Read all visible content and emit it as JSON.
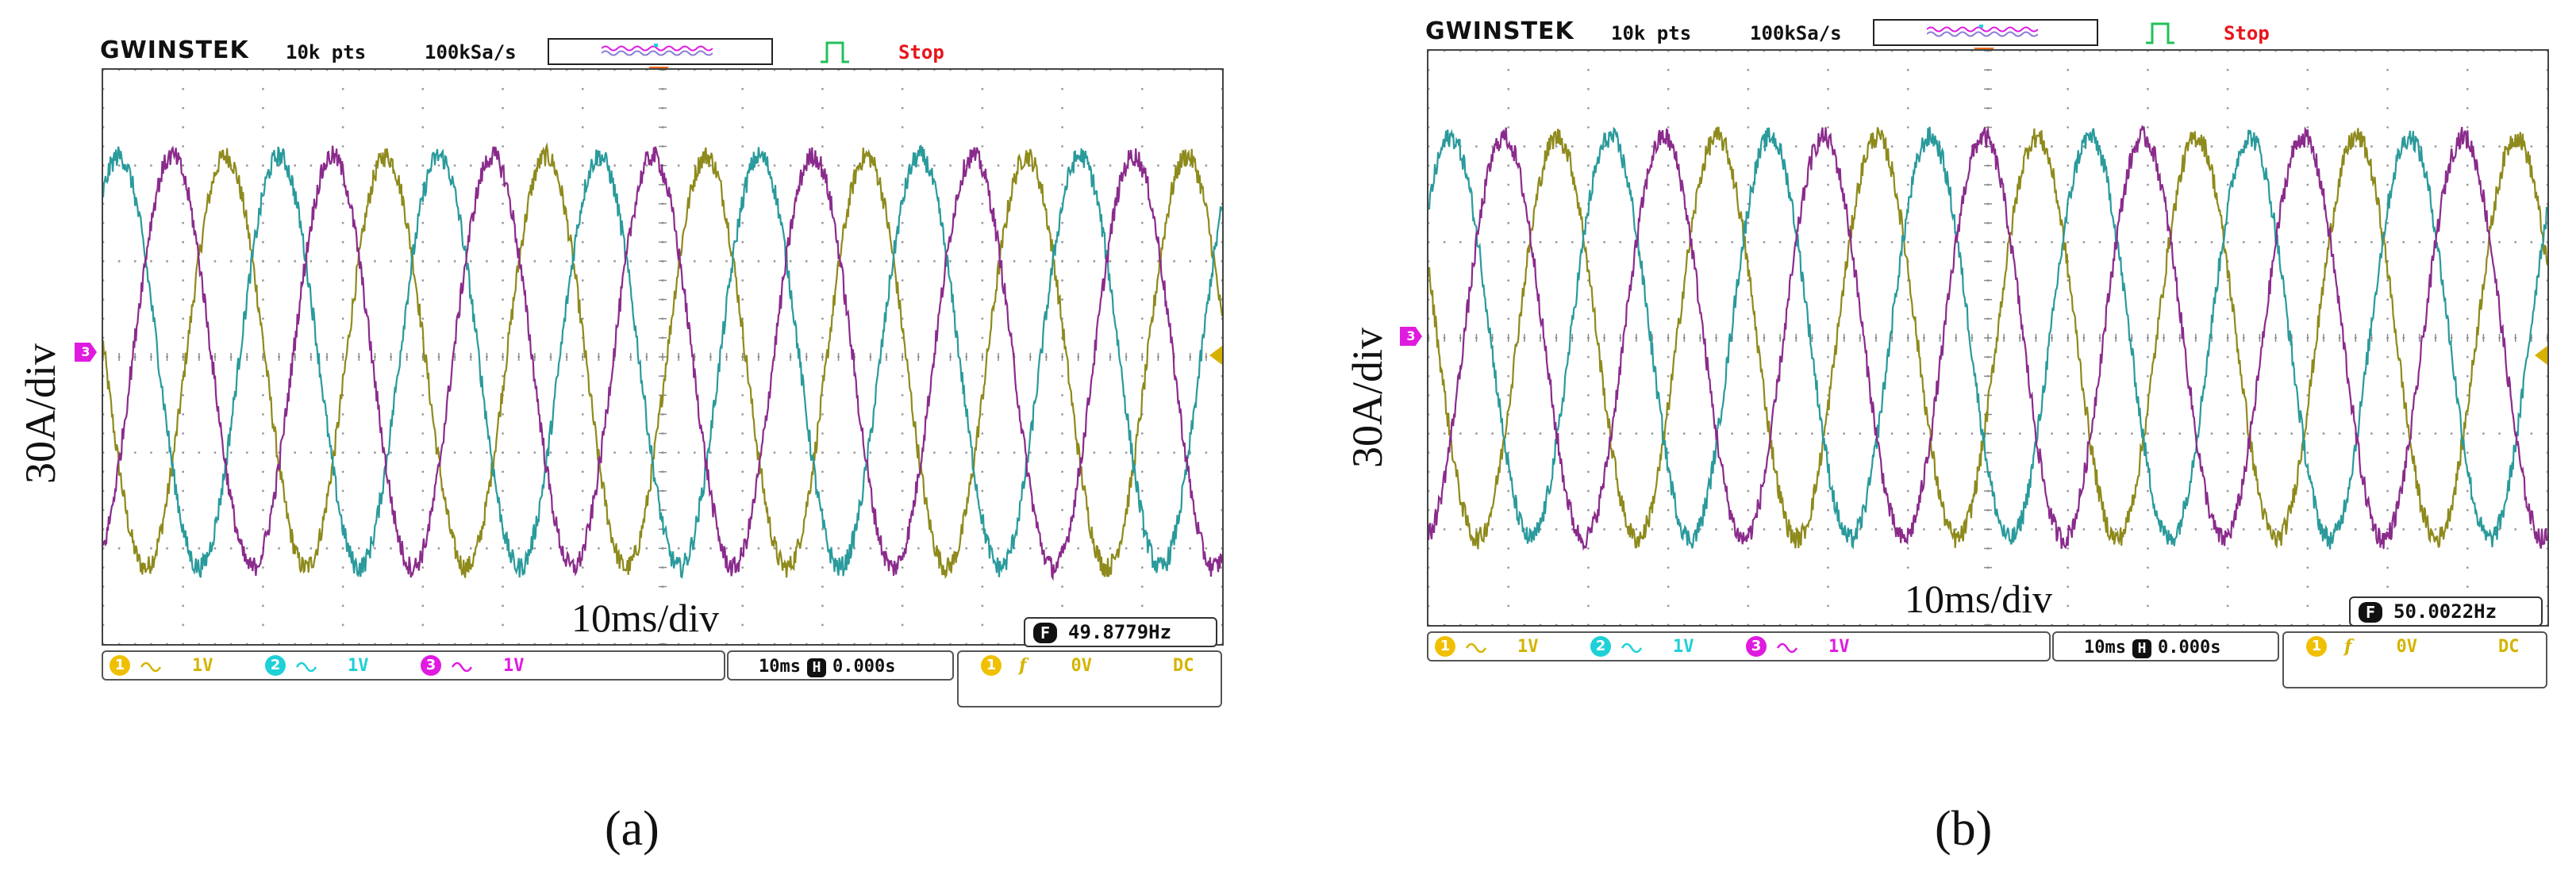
{
  "panels": [
    {
      "id": "a",
      "brand": "GWINSTEK",
      "record_length": "10k pts",
      "sample_rate": "100kSa/s",
      "run_state": "Stop",
      "y_scale_label": "30A/div",
      "x_scale_label": "10ms/div",
      "channel_marker": "3",
      "frequency_readout": "49.8779Hz",
      "frequency_icon": "F",
      "channels": [
        {
          "number": "1",
          "coupling_icon": "ac-coupling-icon",
          "volts_div": "1V",
          "color": "#d4b400"
        },
        {
          "number": "2",
          "coupling_icon": "ac-coupling-icon",
          "volts_div": "1V",
          "color": "#1ed0d8"
        },
        {
          "number": "3",
          "coupling_icon": "ac-coupling-icon",
          "volts_div": "1V",
          "color": "#e01be0"
        }
      ],
      "timebase": "10ms",
      "horizontal_icon": "H",
      "horizontal_position": "0.000s",
      "trigger": {
        "source": "1",
        "slope": "f",
        "level": "0V",
        "coupling": "DC"
      },
      "sublabel": "(a)"
    },
    {
      "id": "b",
      "brand": "GWINSTEK",
      "record_length": "10k pts",
      "sample_rate": "100kSa/s",
      "run_state": "Stop",
      "y_scale_label": "30A/div",
      "x_scale_label": "10ms/div",
      "channel_marker": "3",
      "frequency_readout": "50.0022Hz",
      "frequency_icon": "F",
      "channels": [
        {
          "number": "1",
          "coupling_icon": "ac-coupling-icon",
          "volts_div": "1V",
          "color": "#d4b400"
        },
        {
          "number": "2",
          "coupling_icon": "ac-coupling-icon",
          "volts_div": "1V",
          "color": "#1ed0d8"
        },
        {
          "number": "3",
          "coupling_icon": "ac-coupling-icon",
          "volts_div": "1V",
          "color": "#e01be0"
        }
      ],
      "timebase": "10ms",
      "horizontal_icon": "H",
      "horizontal_position": "0.000s",
      "trigger": {
        "source": "1",
        "slope": "f",
        "level": "0V",
        "coupling": "DC"
      },
      "sublabel": "(b)"
    }
  ],
  "chart_data": [
    {
      "type": "line",
      "panel": "a",
      "xlabel": "10ms/div",
      "ylabel": "30A/div",
      "x_unit": "divisions (10 ms/div)",
      "y_unit": "divisions (30 A/div)",
      "xlim": [
        0,
        14
      ],
      "ylim": [
        -3,
        3
      ],
      "grid": true,
      "frequency_hz": 49.8779,
      "series": [
        {
          "color": "#8e8a1c",
          "amplitude_div": 2.15,
          "offset_div": -0.05,
          "phase_deg": 175
        },
        {
          "color": "#2a9a9c",
          "amplitude_div": 2.15,
          "offset_div": -0.05,
          "phase_deg": 55
        },
        {
          "color": "#8a2b8c",
          "amplitude_div": 2.15,
          "offset_div": -0.05,
          "phase_deg": -65
        }
      ]
    },
    {
      "type": "line",
      "panel": "b",
      "xlabel": "10ms/div",
      "ylabel": "30A/div",
      "x_unit": "divisions (10 ms/div)",
      "y_unit": "divisions (30 A/div)",
      "xlim": [
        0,
        14
      ],
      "ylim": [
        -3,
        3
      ],
      "grid": true,
      "frequency_hz": 50.0022,
      "series": [
        {
          "color": "#8e8a1c",
          "amplitude_div": 2.1,
          "offset_div": 0.0,
          "phase_deg": 160
        },
        {
          "color": "#2a9a9c",
          "amplitude_div": 2.1,
          "offset_div": 0.0,
          "phase_deg": 40
        },
        {
          "color": "#8a2b8c",
          "amplitude_div": 2.1,
          "offset_div": 0.0,
          "phase_deg": -80
        }
      ]
    }
  ]
}
